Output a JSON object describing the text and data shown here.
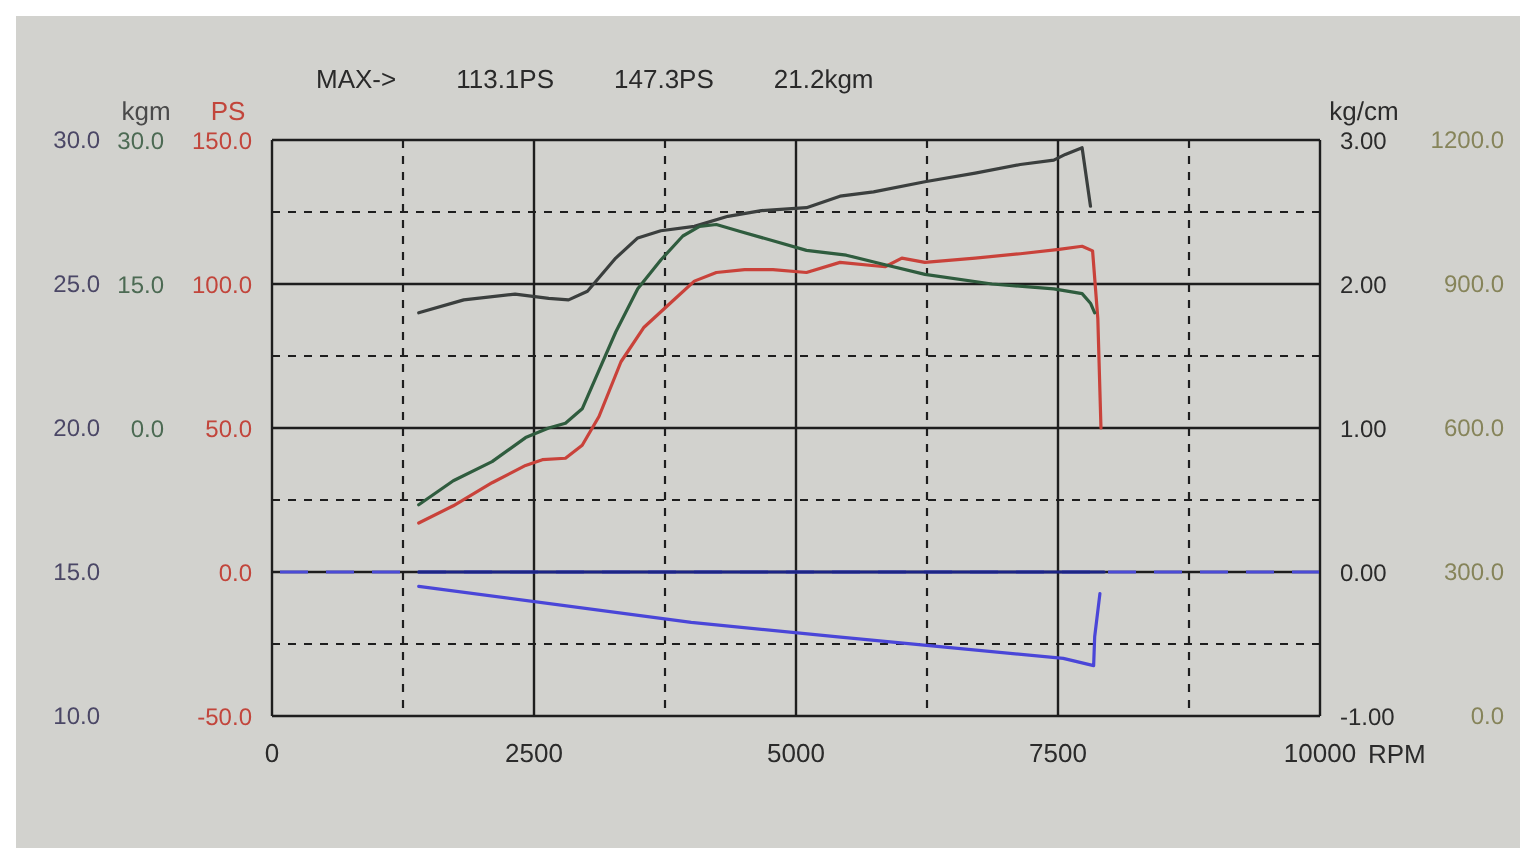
{
  "chart_data": {
    "type": "line",
    "annotations": [
      "MAX->",
      "113.1PS",
      "147.3PS",
      "21.2kgm",
      "30.0",
      "25.0",
      "20.0",
      "15.0",
      "10.0",
      "1200.0",
      "900.0",
      "600.0",
      "300.0",
      "0.0"
    ],
    "xlabel": "RPM",
    "ylabel": "PS",
    "y2label": "kgm",
    "y3label": "kg/cm",
    "xlim": [
      0,
      10000
    ],
    "xticks": [
      0,
      {
        "value": 1250,
        "label": null
      },
      2500,
      {
        "value": 3750,
        "label": null
      },
      5000,
      {
        "value": 6250,
        "label": null
      },
      7500,
      {
        "value": 8750,
        "label": null
      },
      10000
    ],
    "ylim": [
      -50,
      150
    ],
    "yticks": [
      {
        "value": -50,
        "label": "-50.0"
      },
      {
        "value": -25,
        "label": null
      },
      {
        "value": 0,
        "label": "0.0"
      },
      {
        "value": 25,
        "label": null
      },
      {
        "value": 50,
        "label": "50.0"
      },
      {
        "value": 75,
        "label": null
      },
      {
        "value": 100,
        "label": "100.0"
      },
      {
        "value": 125,
        "label": null
      },
      {
        "value": 150,
        "label": "150.0"
      }
    ],
    "y2lim": [
      -30,
      30
    ],
    "y2ticks": [
      {
        "value": 0,
        "label": "0.0"
      },
      {
        "value": 15,
        "label": "15.0"
      },
      {
        "value": 30,
        "label": "30.0"
      }
    ],
    "y3lim": [
      -1,
      3
    ],
    "y3ticks": [
      {
        "value": -1,
        "label": "-1.00"
      },
      {
        "value": 0,
        "label": "0.00"
      },
      {
        "value": 1,
        "label": "1.00"
      },
      {
        "value": 2,
        "label": "2.00"
      },
      {
        "value": 3,
        "label": "3.00"
      }
    ],
    "grid": true,
    "ref_lines": [
      {
        "axis": "y3",
        "value": 0,
        "color": "#4b4bd6",
        "line_style": "dashed"
      }
    ],
    "series": [
      {
        "color": "#c9423a",
        "x": [
          1400,
          1730,
          2100,
          2420,
          2580,
          2800,
          2960,
          3120,
          3330,
          3550,
          3820,
          4030,
          4240,
          4510,
          4780,
          5100,
          5420,
          5850,
          6010,
          6230,
          6710,
          7140,
          7510,
          7730,
          7830,
          7880,
          7910
        ],
        "values": [
          17,
          23,
          31,
          37,
          39,
          39.5,
          44,
          54,
          73,
          85,
          94,
          101,
          104,
          105,
          105,
          104,
          107.5,
          106,
          109,
          107.5,
          109,
          110.5,
          112,
          113.1,
          111.5,
          88,
          50
        ]
      },
      {
        "color": "#3b3f3e",
        "x": [
          1400,
          1830,
          2320,
          2640,
          2830,
          3010,
          3280,
          3490,
          3710,
          4030,
          4350,
          4670,
          5100,
          5420,
          5740,
          6230,
          6710,
          7140,
          7460,
          7570,
          7730,
          7810
        ],
        "values": [
          90,
          94.5,
          96.5,
          95,
          94.5,
          97.5,
          109,
          116,
          118.5,
          120,
          123.5,
          125.5,
          126.5,
          130.5,
          132,
          135.5,
          138.5,
          141.5,
          143,
          145,
          147.3,
          127
        ]
      },
      {
        "color": "#2f5c3e",
        "axis": "y2",
        "x": [
          1400,
          1730,
          2100,
          2420,
          2640,
          2800,
          2960,
          3120,
          3280,
          3490,
          3710,
          3920,
          4080,
          4240,
          4460,
          4780,
          5100,
          5480,
          5850,
          6230,
          6870,
          7460,
          7730,
          7810,
          7850
        ],
        "values": [
          -8,
          -5.5,
          -3.5,
          -1,
          0,
          0.5,
          2,
          6,
          10,
          14.5,
          17.5,
          20,
          21,
          21.2,
          20.5,
          19.5,
          18.5,
          18,
          17,
          16,
          15,
          14.5,
          14,
          13,
          12
        ]
      },
      {
        "color": "#4a46d8",
        "axis": "y3",
        "x": [
          1400,
          4000,
          5400,
          7550,
          7840,
          7850,
          7900
        ],
        "values": [
          -0.1,
          -0.35,
          -0.45,
          -0.6,
          -0.65,
          -0.45,
          -0.15
        ]
      },
      {
        "color": "#1c2585",
        "axis": "y3",
        "x": [
          1400,
          7940
        ],
        "values": [
          0,
          0
        ]
      }
    ]
  }
}
